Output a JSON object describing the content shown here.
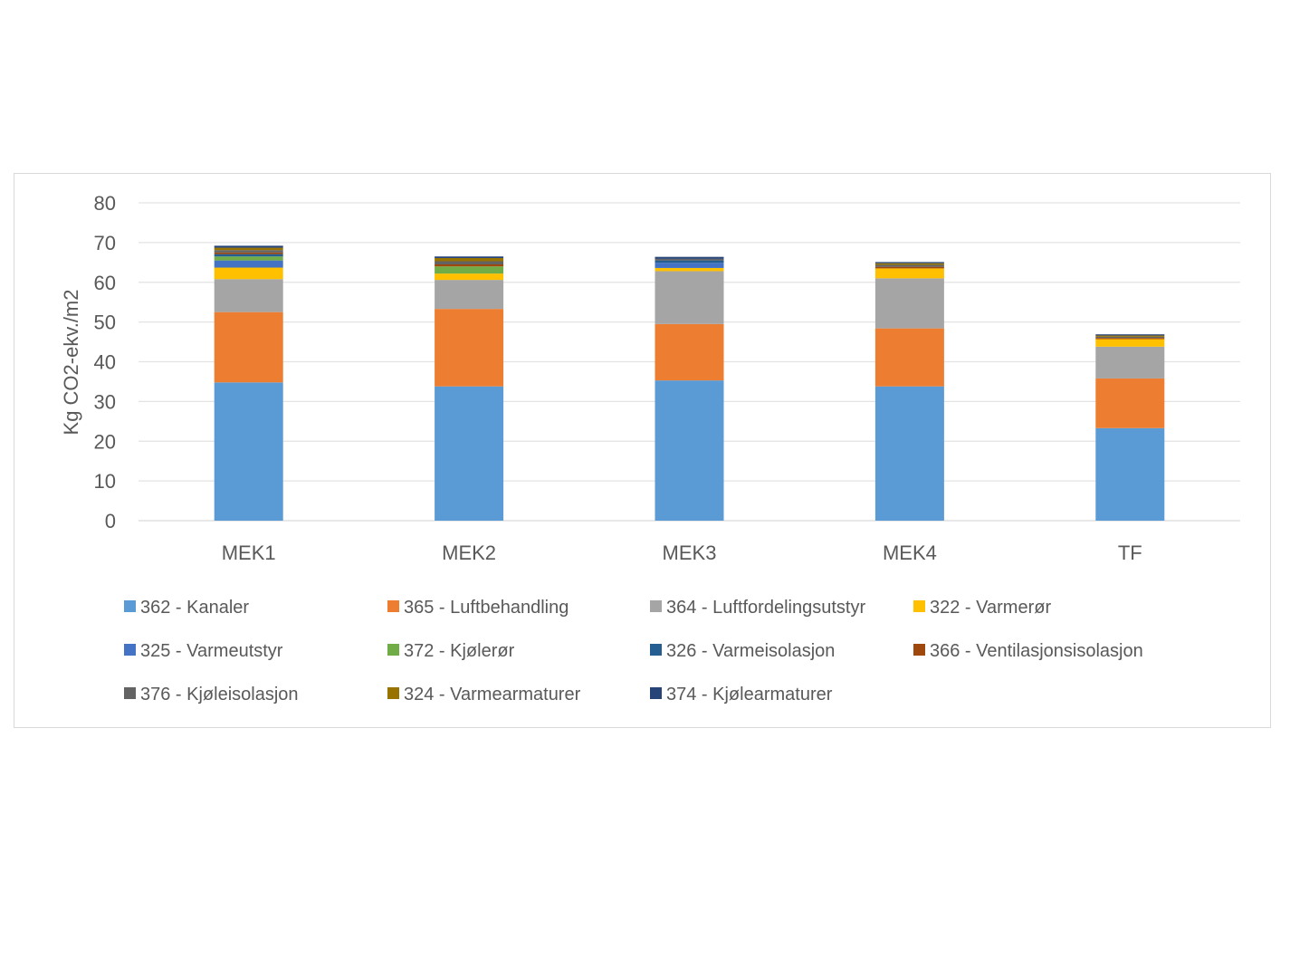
{
  "chart_data": {
    "type": "bar",
    "stacked": true,
    "title": "",
    "xlabel": "",
    "ylabel": "Kg CO2-ekv./m2",
    "ylim": [
      0,
      80
    ],
    "yticks": [
      0,
      10,
      20,
      30,
      40,
      50,
      60,
      70,
      80
    ],
    "grid": true,
    "legend_position": "bottom",
    "categories": [
      "MEK1",
      "MEK2",
      "MEK3",
      "MEK4",
      "TF"
    ],
    "series": [
      {
        "name": "362 - Kanaler",
        "color": "#5B9BD5",
        "values": [
          34.8,
          33.8,
          35.3,
          33.8,
          23.3
        ]
      },
      {
        "name": "365 - Luftbehandling",
        "color": "#ED7D31",
        "values": [
          17.7,
          19.5,
          14.2,
          14.6,
          12.5
        ]
      },
      {
        "name": "364 - Luftfordelingsutstyr",
        "color": "#A5A5A5",
        "values": [
          8.3,
          7.3,
          13.3,
          12.6,
          8.0
        ]
      },
      {
        "name": "322 - Varmerør",
        "color": "#FFC000",
        "values": [
          2.9,
          1.6,
          0.8,
          2.5,
          1.9
        ]
      },
      {
        "name": "325 - Varmeutstyr",
        "color": "#4472C4",
        "values": [
          1.8,
          0.0,
          1.3,
          0.0,
          0.0
        ]
      },
      {
        "name": "372 - Kjølerør",
        "color": "#70AD47",
        "values": [
          1.0,
          1.8,
          0.0,
          0.0,
          0.0
        ]
      },
      {
        "name": "326 - Varmeisolasjon",
        "color": "#255E91",
        "values": [
          0.6,
          0.0,
          0.6,
          0.0,
          0.0
        ]
      },
      {
        "name": "366 - Ventilasjonsisolasjon",
        "color": "#9E480E",
        "values": [
          0.4,
          0.5,
          0.0,
          0.4,
          0.3
        ]
      },
      {
        "name": "376 - Kjøleisolasjon",
        "color": "#636363",
        "values": [
          0.6,
          0.8,
          0.4,
          0.5,
          0.3
        ]
      },
      {
        "name": "324 - Varmearmaturer",
        "color": "#997300",
        "values": [
          0.6,
          0.8,
          0.0,
          0.4,
          0.3
        ]
      },
      {
        "name": "374 - Kjølearmaturer",
        "color": "#264478",
        "values": [
          0.5,
          0.4,
          0.5,
          0.3,
          0.3
        ]
      }
    ]
  }
}
